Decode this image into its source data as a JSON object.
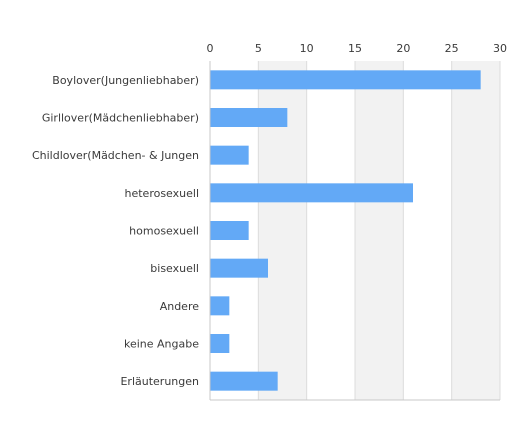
{
  "chart_data": {
    "type": "bar",
    "orientation": "horizontal",
    "categories": [
      "Boylover(Jungenliebhaber)",
      "Girllover(Mädchenliebhaber)",
      "Childlover(Mädchen- & Jungen",
      "heterosexuell",
      "homosexuell",
      "bisexuell",
      "Andere",
      "keine Angabe",
      "Erläuterungen"
    ],
    "values": [
      28,
      8,
      4,
      21,
      4,
      6,
      2,
      2,
      7
    ],
    "xlim": [
      0,
      30
    ],
    "xticks": [
      0,
      5,
      10,
      15,
      20,
      25,
      30
    ],
    "tick_position": "top",
    "grid": true,
    "alternating_bands": true,
    "bar_color": "#63a9f6",
    "band_color": "#f2f2f2",
    "grid_color": "#dcdcdc",
    "title": "",
    "xlabel": "",
    "ylabel": ""
  }
}
